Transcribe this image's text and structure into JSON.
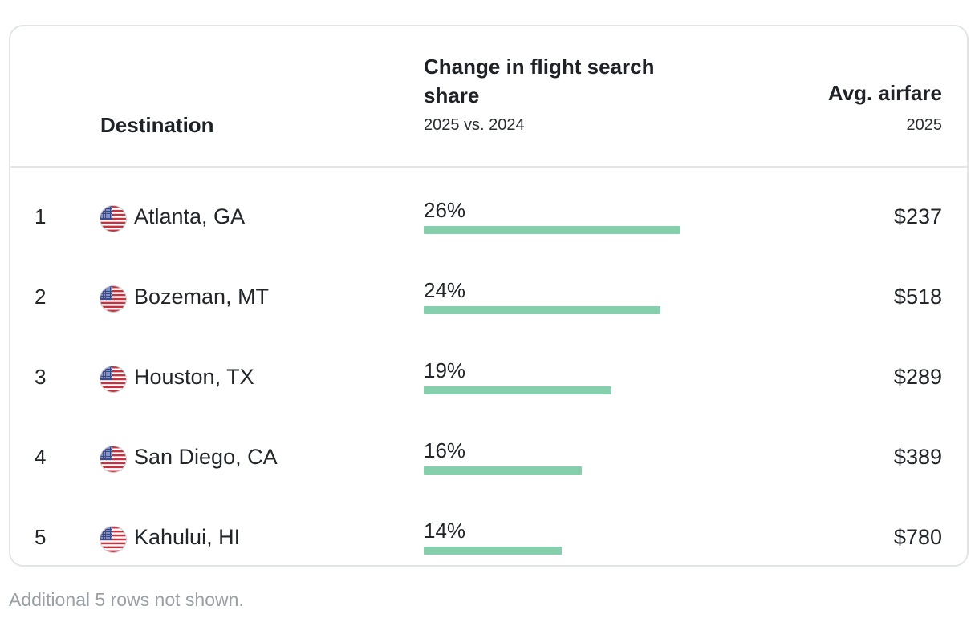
{
  "table": {
    "header": {
      "destination": "Destination",
      "change_title": "Change in flight search share",
      "change_sub": "2025 vs. 2024",
      "fare_title": "Avg. airfare",
      "fare_sub": "2025"
    },
    "rows": [
      {
        "rank": "1",
        "destination": "Atlanta, GA",
        "flag_icon": "us-flag-icon",
        "change_label": "26%",
        "change_value": 26,
        "fare": "$237"
      },
      {
        "rank": "2",
        "destination": "Bozeman, MT",
        "flag_icon": "us-flag-icon",
        "change_label": "24%",
        "change_value": 24,
        "fare": "$518"
      },
      {
        "rank": "3",
        "destination": "Houston, TX",
        "flag_icon": "us-flag-icon",
        "change_label": "19%",
        "change_value": 19,
        "fare": "$289"
      },
      {
        "rank": "4",
        "destination": "San Diego, CA",
        "flag_icon": "us-flag-icon",
        "change_label": "16%",
        "change_value": 16,
        "fare": "$389"
      },
      {
        "rank": "5",
        "destination": "Kahului, HI",
        "flag_icon": "us-flag-icon",
        "change_label": "14%",
        "change_value": 14,
        "fare": "$780"
      }
    ],
    "bar_color": "#86cfad"
  },
  "footnote": "Additional 5 rows not shown."
}
